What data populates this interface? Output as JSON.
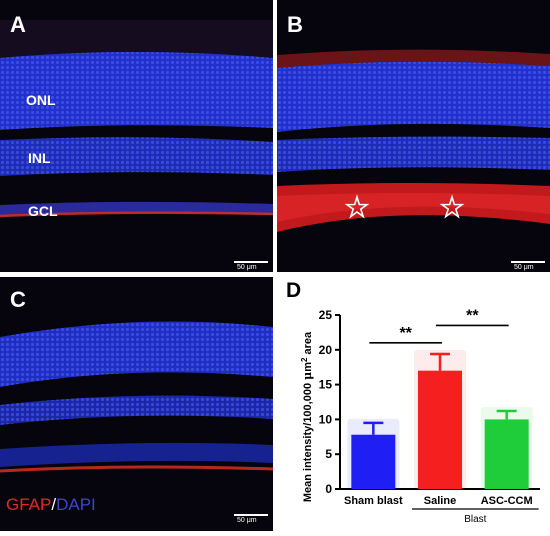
{
  "panels": {
    "A": {
      "label": "A",
      "layers": {
        "onl": "ONL",
        "inl": "INL",
        "gcl": "GCL"
      },
      "scale_bar": "50 μm"
    },
    "B": {
      "label": "B",
      "scale_bar": "50 μm"
    },
    "C": {
      "label": "C",
      "scale_bar": "50 μm"
    },
    "D": {
      "label": "D"
    }
  },
  "legend": {
    "gfap": "GFAP",
    "separator": "/",
    "dapi": "DAPI"
  },
  "colors": {
    "gfap": "#e4282a",
    "dapi": "#3a45d6"
  },
  "chart_data": {
    "type": "bar",
    "ylabel_prefix": "Mean intensity/100,000 ",
    "ylabel_unit_mu": "μ",
    "ylabel_unit_m": "m",
    "ylabel_sup": "2",
    "ylabel_suffix": " area",
    "ylim": [
      0,
      25
    ],
    "yticks": [
      0,
      5,
      10,
      15,
      20,
      25
    ],
    "categories": [
      "Sham blast",
      "Saline",
      "ASC-CCM"
    ],
    "values": [
      7.8,
      17.0,
      10.0
    ],
    "errors": [
      1.7,
      2.4,
      1.2
    ],
    "colors": [
      "#1f1ff5",
      "#f51f1f",
      "#1fcc3a"
    ],
    "group_label": "Blast",
    "significance": [
      {
        "from": 0,
        "to": 1,
        "label": "**"
      },
      {
        "from": 1,
        "to": 2,
        "label": "**"
      }
    ]
  }
}
